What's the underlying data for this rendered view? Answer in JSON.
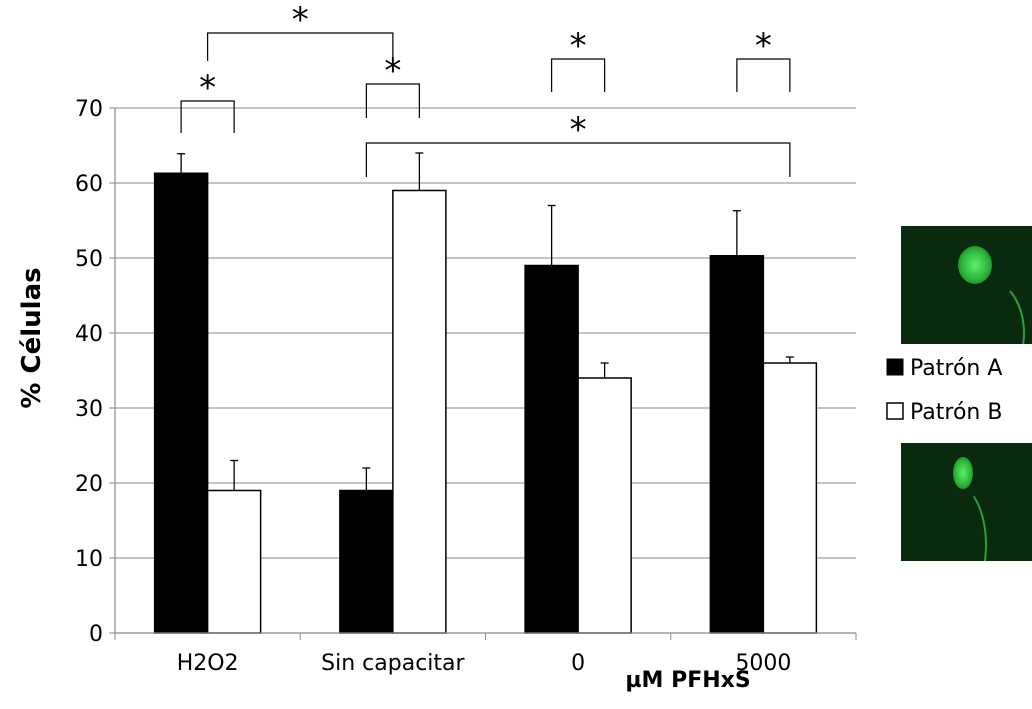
{
  "chart_data": {
    "type": "bar",
    "title": "",
    "ylabel": "% Células",
    "xlabel": "µM PFHxS",
    "ylim": [
      0,
      70
    ],
    "yticks": [
      0,
      10,
      20,
      30,
      40,
      50,
      60,
      70
    ],
    "categories": [
      "H2O2",
      "Sin capacitar",
      "0",
      "5000"
    ],
    "grid": true,
    "legend_position": "right",
    "series": [
      {
        "name": "Patrón A",
        "color": "#000000",
        "values": [
          61.3,
          19.0,
          49.0,
          50.3
        ],
        "errors": [
          2.6,
          3.0,
          8.0,
          6.0
        ]
      },
      {
        "name": "Patrón B",
        "color": "#ffffff",
        "values": [
          19.0,
          59.0,
          34.0,
          36.0
        ],
        "errors": [
          4.0,
          5.0,
          2.0,
          0.8
        ]
      }
    ],
    "annotations": [
      {
        "text": "*",
        "from": "H2O2 / Patrón A",
        "to": "H2O2 / Patrón B"
      },
      {
        "text": "*",
        "from": "H2O2",
        "to": "Sin capacitar"
      },
      {
        "text": "*",
        "from": "Sin capacitar / Patrón A",
        "to": "Sin capacitar / Patrón B"
      },
      {
        "text": "*",
        "from": "0 / Patrón A",
        "to": "0 / Patrón B"
      },
      {
        "text": "*",
        "from": "5000 / Patrón A",
        "to": "5000 / Patrón B"
      },
      {
        "text": "*",
        "from": "Sin capacitar / Patrón A",
        "to": "5000 / Patrón B"
      }
    ]
  },
  "images": [
    "sperm-pattern-a-micrograph",
    "sperm-pattern-b-micrograph"
  ]
}
